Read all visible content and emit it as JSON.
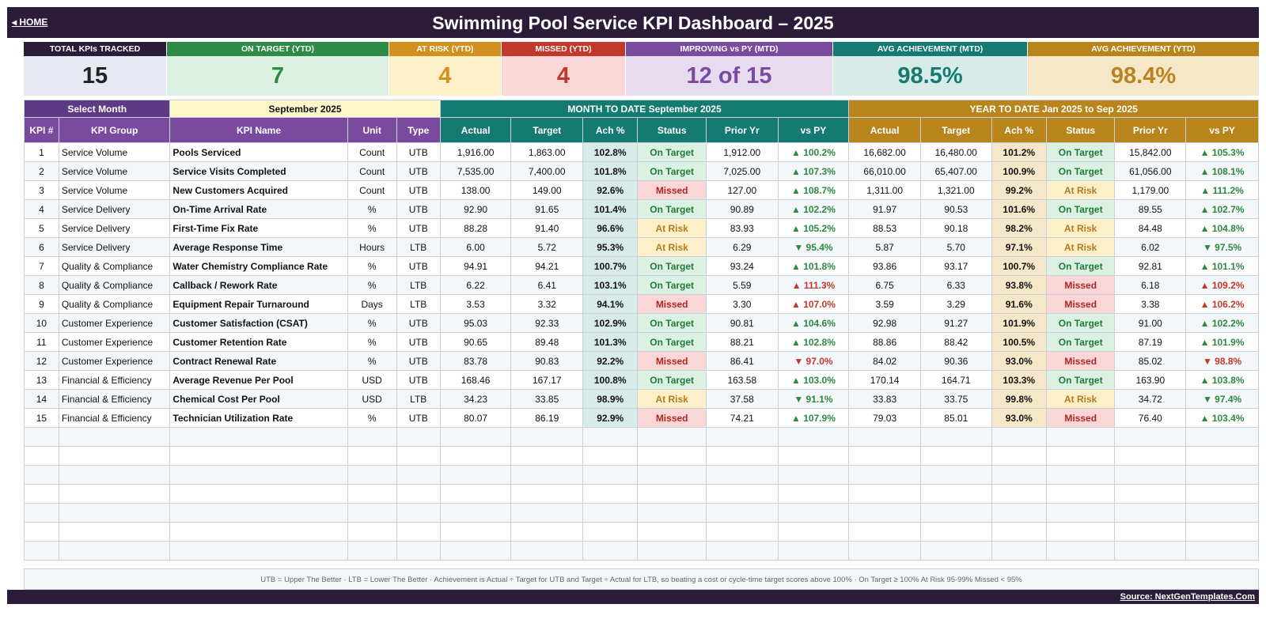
{
  "header": {
    "home_label": "◂ HOME",
    "title": "Swimming Pool Service KPI Dashboard   –   2025"
  },
  "cards": [
    {
      "label": "TOTAL KPIs TRACKED",
      "value": "15",
      "head_color": "#2b1d3a",
      "body_color": "#e6e9f1",
      "value_color": "#222222"
    },
    {
      "label": "ON TARGET (YTD)",
      "value": "7",
      "head_color": "#2e8b45",
      "body_color": "#dcf1e2",
      "value_color": "#2e8b45"
    },
    {
      "label": "AT RISK (YTD)",
      "value": "4",
      "head_color": "#d4901e",
      "body_color": "#fdf0c8",
      "value_color": "#d4901e"
    },
    {
      "label": "MISSED (YTD)",
      "value": "4",
      "head_color": "#c0392b",
      "body_color": "#f9d7d7",
      "value_color": "#c0392b"
    },
    {
      "label": "IMPROVING vs PY (MTD)",
      "value": "12 of 15",
      "head_color": "#7a4a9e",
      "body_color": "#e7dcef",
      "value_color": "#7a4a9e"
    },
    {
      "label": "AVG ACHIEVEMENT (MTD)",
      "value": "98.5%",
      "head_color": "#157a72",
      "body_color": "#d7ebe8",
      "value_color": "#157a72"
    },
    {
      "label": "AVG ACHIEVEMENT (YTD)",
      "value": "98.4%",
      "head_color": "#b7851c",
      "body_color": "#f7e7c9",
      "value_color": "#b7851c"
    }
  ],
  "selector": {
    "label": "Select Month",
    "value": "September 2025"
  },
  "bands": {
    "mtd": "MONTH TO DATE     September 2025",
    "ytd": "YEAR TO DATE     Jan 2025  to  Sep 2025"
  },
  "columns": {
    "num": "KPI #",
    "group": "KPI Group",
    "name": "KPI Name",
    "unit": "Unit",
    "type": "Type",
    "actual": "Actual",
    "target": "Target",
    "ach": "Ach %",
    "status": "Status",
    "prior": "Prior Yr",
    "vspy": "vs PY"
  },
  "rows": [
    {
      "num": "1",
      "group": "Service Volume",
      "name": "Pools Serviced",
      "unit": "Count",
      "type": "UTB",
      "m_actual": "1,916.00",
      "m_target": "1,863.00",
      "m_ach": "102.8%",
      "m_status": "On Target",
      "m_prior": "1,912.00",
      "m_vspy": "▲ 100.2%",
      "y_actual": "16,682.00",
      "y_target": "16,480.00",
      "y_ach": "101.2%",
      "y_status": "On Target",
      "y_prior": "15,842.00",
      "y_vspy": "▲ 105.3%"
    },
    {
      "num": "2",
      "group": "Service Volume",
      "name": "Service Visits Completed",
      "unit": "Count",
      "type": "UTB",
      "m_actual": "7,535.00",
      "m_target": "7,400.00",
      "m_ach": "101.8%",
      "m_status": "On Target",
      "m_prior": "7,025.00",
      "m_vspy": "▲ 107.3%",
      "y_actual": "66,010.00",
      "y_target": "65,407.00",
      "y_ach": "100.9%",
      "y_status": "On Target",
      "y_prior": "61,056.00",
      "y_vspy": "▲ 108.1%"
    },
    {
      "num": "3",
      "group": "Service Volume",
      "name": "New Customers Acquired",
      "unit": "Count",
      "type": "UTB",
      "m_actual": "138.00",
      "m_target": "149.00",
      "m_ach": "92.6%",
      "m_status": "Missed",
      "m_prior": "127.00",
      "m_vspy": "▲ 108.7%",
      "y_actual": "1,311.00",
      "y_target": "1,321.00",
      "y_ach": "99.2%",
      "y_status": "At Risk",
      "y_prior": "1,179.00",
      "y_vspy": "▲ 111.2%"
    },
    {
      "num": "4",
      "group": "Service Delivery",
      "name": "On-Time Arrival Rate",
      "unit": "%",
      "type": "UTB",
      "m_actual": "92.90",
      "m_target": "91.65",
      "m_ach": "101.4%",
      "m_status": "On Target",
      "m_prior": "90.89",
      "m_vspy": "▲ 102.2%",
      "y_actual": "91.97",
      "y_target": "90.53",
      "y_ach": "101.6%",
      "y_status": "On Target",
      "y_prior": "89.55",
      "y_vspy": "▲ 102.7%"
    },
    {
      "num": "5",
      "group": "Service Delivery",
      "name": "First-Time Fix Rate",
      "unit": "%",
      "type": "UTB",
      "m_actual": "88.28",
      "m_target": "91.40",
      "m_ach": "96.6%",
      "m_status": "At Risk",
      "m_prior": "83.93",
      "m_vspy": "▲ 105.2%",
      "y_actual": "88.53",
      "y_target": "90.18",
      "y_ach": "98.2%",
      "y_status": "At Risk",
      "y_prior": "84.48",
      "y_vspy": "▲ 104.8%"
    },
    {
      "num": "6",
      "group": "Service Delivery",
      "name": "Average Response Time",
      "unit": "Hours",
      "type": "LTB",
      "m_actual": "6.00",
      "m_target": "5.72",
      "m_ach": "95.3%",
      "m_status": "At Risk",
      "m_prior": "6.29",
      "m_vspy": "▼ 95.4%",
      "y_actual": "5.87",
      "y_target": "5.70",
      "y_ach": "97.1%",
      "y_status": "At Risk",
      "y_prior": "6.02",
      "y_vspy": "▼ 97.5%"
    },
    {
      "num": "7",
      "group": "Quality & Compliance",
      "name": "Water Chemistry Compliance Rate",
      "unit": "%",
      "type": "UTB",
      "m_actual": "94.91",
      "m_target": "94.21",
      "m_ach": "100.7%",
      "m_status": "On Target",
      "m_prior": "93.24",
      "m_vspy": "▲ 101.8%",
      "y_actual": "93.86",
      "y_target": "93.17",
      "y_ach": "100.7%",
      "y_status": "On Target",
      "y_prior": "92.81",
      "y_vspy": "▲ 101.1%"
    },
    {
      "num": "8",
      "group": "Quality & Compliance",
      "name": "Callback / Rework Rate",
      "unit": "%",
      "type": "LTB",
      "m_actual": "6.22",
      "m_target": "6.41",
      "m_ach": "103.1%",
      "m_status": "On Target",
      "m_prior": "5.59",
      "m_vspy": "▲ 111.3%",
      "y_actual": "6.75",
      "y_target": "6.33",
      "y_ach": "93.8%",
      "y_status": "Missed",
      "y_prior": "6.18",
      "y_vspy": "▲ 109.2%"
    },
    {
      "num": "9",
      "group": "Quality & Compliance",
      "name": "Equipment Repair Turnaround",
      "unit": "Days",
      "type": "LTB",
      "m_actual": "3.53",
      "m_target": "3.32",
      "m_ach": "94.1%",
      "m_status": "Missed",
      "m_prior": "3.30",
      "m_vspy": "▲ 107.0%",
      "y_actual": "3.59",
      "y_target": "3.29",
      "y_ach": "91.6%",
      "y_status": "Missed",
      "y_prior": "3.38",
      "y_vspy": "▲ 106.2%"
    },
    {
      "num": "10",
      "group": "Customer Experience",
      "name": "Customer Satisfaction (CSAT)",
      "unit": "%",
      "type": "UTB",
      "m_actual": "95.03",
      "m_target": "92.33",
      "m_ach": "102.9%",
      "m_status": "On Target",
      "m_prior": "90.81",
      "m_vspy": "▲ 104.6%",
      "y_actual": "92.98",
      "y_target": "91.27",
      "y_ach": "101.9%",
      "y_status": "On Target",
      "y_prior": "91.00",
      "y_vspy": "▲ 102.2%"
    },
    {
      "num": "11",
      "group": "Customer Experience",
      "name": "Customer Retention Rate",
      "unit": "%",
      "type": "UTB",
      "m_actual": "90.65",
      "m_target": "89.48",
      "m_ach": "101.3%",
      "m_status": "On Target",
      "m_prior": "88.21",
      "m_vspy": "▲ 102.8%",
      "y_actual": "88.86",
      "y_target": "88.42",
      "y_ach": "100.5%",
      "y_status": "On Target",
      "y_prior": "87.19",
      "y_vspy": "▲ 101.9%"
    },
    {
      "num": "12",
      "group": "Customer Experience",
      "name": "Contract Renewal Rate",
      "unit": "%",
      "type": "UTB",
      "m_actual": "83.78",
      "m_target": "90.83",
      "m_ach": "92.2%",
      "m_status": "Missed",
      "m_prior": "86.41",
      "m_vspy": "▼ 97.0%",
      "y_actual": "84.02",
      "y_target": "90.36",
      "y_ach": "93.0%",
      "y_status": "Missed",
      "y_prior": "85.02",
      "y_vspy": "▼ 98.8%"
    },
    {
      "num": "13",
      "group": "Financial & Efficiency",
      "name": "Average Revenue Per Pool",
      "unit": "USD",
      "type": "UTB",
      "m_actual": "168.46",
      "m_target": "167.17",
      "m_ach": "100.8%",
      "m_status": "On Target",
      "m_prior": "163.58",
      "m_vspy": "▲ 103.0%",
      "y_actual": "170.14",
      "y_target": "164.71",
      "y_ach": "103.3%",
      "y_status": "On Target",
      "y_prior": "163.90",
      "y_vspy": "▲ 103.8%"
    },
    {
      "num": "14",
      "group": "Financial & Efficiency",
      "name": "Chemical Cost Per Pool",
      "unit": "USD",
      "type": "LTB",
      "m_actual": "34.23",
      "m_target": "33.85",
      "m_ach": "98.9%",
      "m_status": "At Risk",
      "m_prior": "37.58",
      "m_vspy": "▼ 91.1%",
      "y_actual": "33.83",
      "y_target": "33.75",
      "y_ach": "99.8%",
      "y_status": "At Risk",
      "y_prior": "34.72",
      "y_vspy": "▼ 97.4%"
    },
    {
      "num": "15",
      "group": "Financial & Efficiency",
      "name": "Technician Utilization Rate",
      "unit": "%",
      "type": "UTB",
      "m_actual": "80.07",
      "m_target": "86.19",
      "m_ach": "92.9%",
      "m_status": "Missed",
      "m_prior": "74.21",
      "m_vspy": "▲ 107.9%",
      "y_actual": "79.03",
      "y_target": "85.01",
      "y_ach": "93.0%",
      "y_status": "Missed",
      "y_prior": "76.40",
      "y_vspy": "▲ 103.4%"
    }
  ],
  "legend": "UTB = Upper The Better    ·    LTB = Lower The Better    ·    Achievement is Actual ÷ Target for UTB and Target ÷ Actual for LTB, so beating a cost or cycle-time target scores above 100%    ·    On Target ≥ 100%     At Risk 95-99%     Missed < 95%",
  "footer": {
    "source": "Source: NextGenTemplates.Com"
  }
}
